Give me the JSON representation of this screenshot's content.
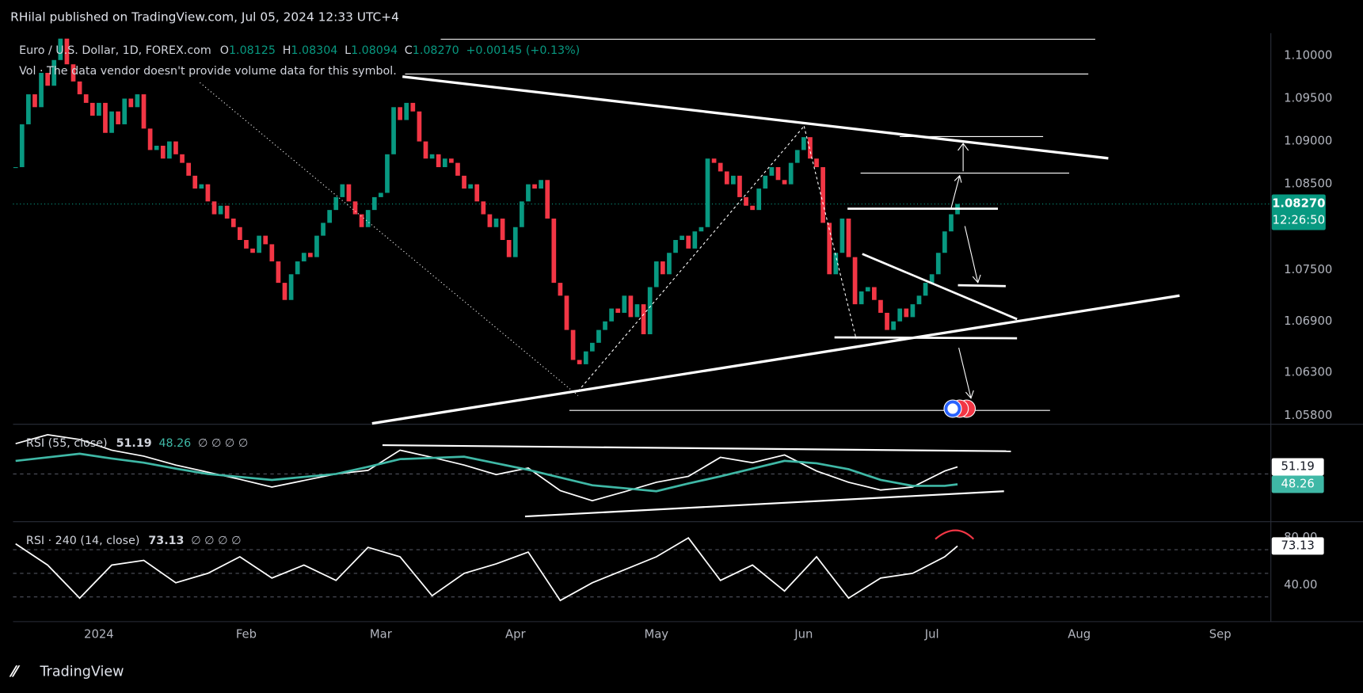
{
  "header": {
    "byline": "RHilal published on TradingView.com, Jul 05, 2024 12:33 UTC+4"
  },
  "footer": {
    "brand": "TradingView"
  },
  "chart_data": [
    {
      "type": "candlestick",
      "title": "Euro / U.S. Dollar, 1D, FOREX.com",
      "quote": [
        {
          "key": "O",
          "text": "1.08125"
        },
        {
          "key": "H",
          "text": "1.08304"
        },
        {
          "key": "L",
          "text": "1.08094"
        },
        {
          "key": "C",
          "text": "1.08270"
        }
      ],
      "change": "+0.00145 (+0.13%)",
      "volume_note": "Vol · The data vendor doesn't provide volume data for this symbol.",
      "closes": [
        1.087,
        1.092,
        1.0955,
        1.094,
        1.098,
        1.0965,
        1.0995,
        1.102,
        1.099,
        1.097,
        1.0955,
        1.0945,
        1.093,
        1.0945,
        1.091,
        1.0935,
        1.092,
        1.095,
        1.094,
        1.0955,
        1.0915,
        1.089,
        1.0895,
        1.088,
        1.09,
        1.0885,
        1.0875,
        1.086,
        1.0845,
        1.085,
        1.083,
        1.0815,
        1.0825,
        1.081,
        1.08,
        1.0785,
        1.0775,
        1.077,
        1.079,
        1.078,
        1.076,
        1.0735,
        1.0715,
        1.0745,
        1.076,
        1.077,
        1.0765,
        1.079,
        1.0805,
        1.082,
        1.0835,
        1.085,
        1.083,
        1.0815,
        1.08,
        1.082,
        1.0835,
        1.084,
        1.0885,
        1.094,
        1.0925,
        1.0945,
        1.0935,
        1.09,
        1.088,
        1.0885,
        1.087,
        1.088,
        1.0875,
        1.086,
        1.0845,
        1.085,
        1.083,
        1.0815,
        1.08,
        1.081,
        1.0785,
        1.0765,
        1.08,
        1.083,
        1.085,
        1.0845,
        1.0855,
        1.081,
        1.0735,
        1.072,
        1.068,
        1.0645,
        1.064,
        1.0655,
        1.0665,
        1.068,
        1.069,
        1.0705,
        1.07,
        1.072,
        1.0695,
        1.071,
        1.0675,
        1.073,
        1.076,
        1.0745,
        1.077,
        1.0785,
        1.079,
        1.0775,
        1.0795,
        1.08,
        1.088,
        1.0875,
        1.0865,
        1.085,
        1.086,
        1.0835,
        1.0825,
        1.082,
        1.0845,
        1.086,
        1.087,
        1.0855,
        1.085,
        1.0875,
        1.089,
        1.0905,
        1.088,
        1.087,
        1.0805,
        1.0745,
        1.077,
        1.081,
        1.0765,
        1.071,
        1.0725,
        1.073,
        1.0715,
        1.07,
        1.068,
        1.069,
        1.0705,
        1.0695,
        1.071,
        1.072,
        1.0735,
        1.0745,
        1.077,
        1.0795,
        1.0815,
        1.0827
      ],
      "up_color": "#089981",
      "down_color": "#f23645",
      "xlim": [
        -0.4,
        195.9
      ],
      "xticks": [
        {
          "value": 13,
          "label": "2024"
        },
        {
          "value": 36,
          "label": "Feb"
        },
        {
          "value": 57,
          "label": "Mar"
        },
        {
          "value": 78,
          "label": "Apr"
        },
        {
          "value": 100,
          "label": "May"
        },
        {
          "value": 123,
          "label": "Jun"
        },
        {
          "value": 143,
          "label": "Jul"
        },
        {
          "value": 166,
          "label": "Aug"
        },
        {
          "value": 188,
          "label": "Sep"
        }
      ],
      "ylim": [
        1.05699,
        1.10264
      ],
      "yticks": [
        {
          "value": 1.1,
          "label": "1.10000"
        },
        {
          "value": 1.095,
          "label": "1.09500"
        },
        {
          "value": 1.09,
          "label": "1.09000"
        },
        {
          "value": 1.085,
          "label": "1.08500"
        },
        {
          "value": 1.075,
          "label": "1.07500"
        },
        {
          "value": 1.069,
          "label": "1.06900"
        },
        {
          "value": 1.063,
          "label": "1.06300"
        },
        {
          "value": 1.058,
          "label": "1.05800"
        }
      ],
      "last_price": {
        "value": 1.0827,
        "label": "1.08270"
      },
      "countdown": "12:26:50"
    },
    {
      "type": "line",
      "title": "RSI (55, close)",
      "placeholders": "∅ ∅ ∅ ∅",
      "x": [
        0,
        5,
        10,
        15,
        20,
        25,
        30,
        35,
        40,
        45,
        50,
        55,
        60,
        65,
        70,
        75,
        80,
        85,
        90,
        95,
        100,
        105,
        110,
        115,
        120,
        125,
        130,
        135,
        140,
        145,
        147
      ],
      "series": [
        {
          "color": "#ffffff",
          "values": [
            55.1,
            56.6,
            55.8,
            54.0,
            53.0,
            51.5,
            50.3,
            49.1,
            47.8,
            48.9,
            50.0,
            50.6,
            54.0,
            52.8,
            51.5,
            49.9,
            51.0,
            47.2,
            45.5,
            47.0,
            48.6,
            49.6,
            52.8,
            51.9,
            53.2,
            50.5,
            48.6,
            47.3,
            47.8,
            50.5,
            51.19
          ]
        },
        {
          "color": "#3fb8a6",
          "values": [
            52.2,
            52.8,
            53.4,
            52.6,
            51.9,
            50.9,
            50.0,
            49.5,
            49.0,
            49.5,
            50.0,
            51.2,
            52.5,
            52.7,
            52.9,
            51.8,
            50.7,
            49.4,
            48.1,
            47.6,
            47.1,
            48.4,
            49.6,
            50.9,
            52.2,
            51.8,
            50.8,
            49.0,
            48.0,
            48.0,
            48.26
          ]
        }
      ],
      "ylim": [
        41.97,
        58.36
      ],
      "levels": [
        50
      ]
    },
    {
      "type": "line",
      "title": "RSI · 240 (14, close)",
      "placeholders": "∅ ∅ ∅ ∅",
      "x": [
        0,
        5,
        10,
        15,
        20,
        25,
        30,
        35,
        40,
        45,
        50,
        55,
        60,
        65,
        70,
        75,
        80,
        85,
        90,
        95,
        100,
        105,
        110,
        115,
        120,
        125,
        130,
        135,
        140,
        145,
        147
      ],
      "series": [
        {
          "color": "#ffffff",
          "values": [
            75,
            57,
            29,
            57,
            61,
            42,
            50,
            64,
            46,
            57,
            44,
            72,
            64,
            31,
            50,
            58,
            68,
            27,
            42,
            53,
            64,
            80,
            44,
            57,
            35,
            64,
            29,
            46,
            50,
            64,
            73.13
          ]
        }
      ],
      "ylim": [
        9.1,
        93.75
      ],
      "yticks": [
        {
          "value": 40,
          "label": "40.00"
        },
        {
          "value": 80,
          "label": "80.00"
        }
      ],
      "levels": [
        30,
        50,
        70
      ]
    }
  ]
}
